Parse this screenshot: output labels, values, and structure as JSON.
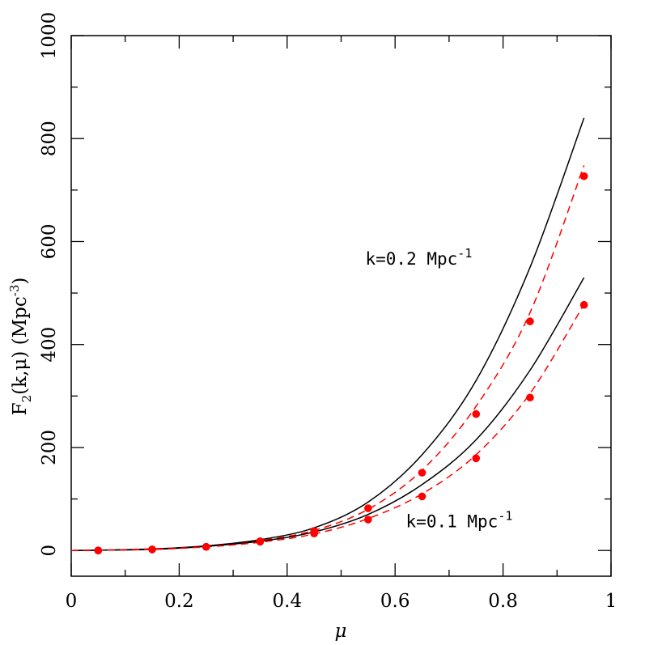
{
  "chart_data": {
    "type": "line",
    "title": "",
    "xlabel": "μ",
    "ylabel": {
      "prefix": "F",
      "sub": "2",
      "mid": "(k,μ)  (Mpc",
      "sup": "-3",
      "suffix": ")"
    },
    "xlim": [
      0,
      1
    ],
    "ylim": [
      -50,
      1000
    ],
    "x_ticks": [
      0,
      0.2,
      0.4,
      0.6,
      0.8,
      1
    ],
    "x_tick_labels": [
      "0",
      "0.2",
      "0.4",
      "0.6",
      "0.8",
      "1"
    ],
    "x_minor_step": 0.1,
    "y_ticks": [
      0,
      200,
      400,
      600,
      800,
      1000
    ],
    "y_tick_labels": [
      "0",
      "200",
      "400",
      "600",
      "800",
      "1000"
    ],
    "y_minor_step": 100,
    "grid": false,
    "colors": {
      "model": "#000000",
      "fit": "#ff0000",
      "points": "#ff0000"
    },
    "series": [
      {
        "group": "k=0.2",
        "style": "solid",
        "x": [
          0,
          0.05,
          0.15,
          0.25,
          0.35,
          0.45,
          0.55,
          0.65,
          0.75,
          0.85,
          0.95
        ],
        "y": [
          0,
          0.5,
          3,
          9,
          21,
          44,
          94,
          186,
          330,
          550,
          840
        ]
      },
      {
        "group": "k=0.2",
        "style": "dashed",
        "x": [
          0,
          0.05,
          0.15,
          0.25,
          0.35,
          0.45,
          0.55,
          0.65,
          0.75,
          0.85,
          0.95
        ],
        "y": [
          0,
          0.5,
          3,
          8,
          19,
          39,
          80,
          156,
          280,
          462,
          748
        ]
      },
      {
        "group": "k=0.2",
        "style": "points",
        "x": [
          0.05,
          0.15,
          0.25,
          0.35,
          0.45,
          0.55,
          0.65,
          0.75,
          0.85,
          0.95
        ],
        "y": [
          0,
          2,
          7,
          18,
          38,
          82,
          151,
          265,
          445,
          727
        ]
      },
      {
        "group": "k=0.1",
        "style": "solid",
        "x": [
          0,
          0.05,
          0.15,
          0.25,
          0.35,
          0.45,
          0.55,
          0.65,
          0.75,
          0.85,
          0.95
        ],
        "y": [
          0,
          0.5,
          2,
          8,
          18,
          36,
          70,
          128,
          215,
          350,
          530
        ]
      },
      {
        "group": "k=0.1",
        "style": "dashed",
        "x": [
          0,
          0.05,
          0.15,
          0.25,
          0.35,
          0.45,
          0.55,
          0.65,
          0.75,
          0.85,
          0.95
        ],
        "y": [
          0,
          0.5,
          2,
          7,
          16,
          32,
          62,
          110,
          186,
          305,
          478
        ]
      },
      {
        "group": "k=0.1",
        "style": "points",
        "x": [
          0.05,
          0.15,
          0.25,
          0.35,
          0.45,
          0.55,
          0.65,
          0.75,
          0.85,
          0.95
        ],
        "y": [
          0,
          2,
          7,
          17,
          33,
          60,
          105,
          179,
          297,
          477
        ]
      }
    ],
    "annotations": [
      {
        "text": "k=0.2 Mpc",
        "sup": "-1",
        "x": 0.545,
        "y": 555
      },
      {
        "text": "k=0.1 Mpc",
        "sup": "-1",
        "x": 0.62,
        "y": 45
      }
    ]
  }
}
